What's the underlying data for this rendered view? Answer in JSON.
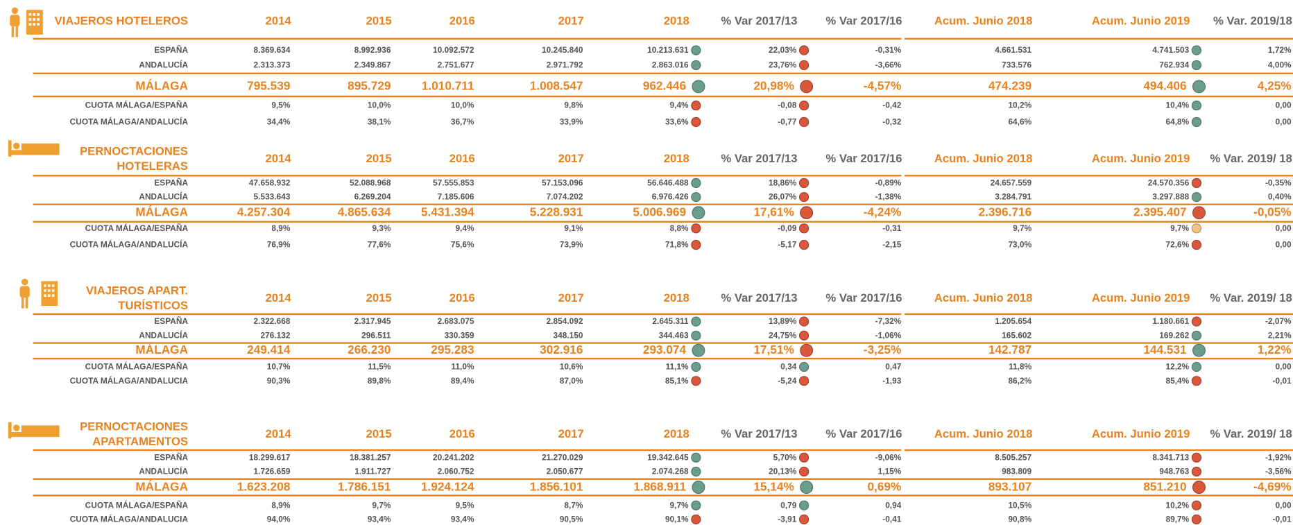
{
  "sections": [
    {
      "title_lines": [
        "VIAJEROS  HOTELEROS"
      ],
      "headers": [
        "2014",
        "2015",
        "2016",
        "2017",
        "2018",
        "% Var 2017/13",
        "% Var 2017/16",
        "Acum. Junio 2018",
        "Acum. Junio 2019",
        "% Var. 2019/18"
      ],
      "rows": [
        {
          "label": "ESPAÑA",
          "values": [
            "8.369.634",
            "8.992.936",
            "10.092.572",
            "10.245.840",
            "10.213.631",
            "22,03%",
            "-0,31%",
            "4.661.531",
            "4.741.503",
            "1,72%"
          ],
          "dots": [
            "#6a9e8b",
            "#d9573b",
            "#6a9e8b"
          ]
        },
        {
          "label": "ANDALUCÍA",
          "values": [
            "2.313.373",
            "2.349.867",
            "2.751.677",
            "2.971.792",
            "2.863.016",
            "23,76%",
            "-3,66%",
            "733.576",
            "762.934",
            "4,00%"
          ],
          "dots": [
            "#6a9e8b",
            "#d9573b",
            "#6a9e8b"
          ]
        },
        {
          "label": "MÁLAGA",
          "values": [
            "795.539",
            "895.729",
            "1.010.711",
            "1.008.547",
            "962.446",
            "20,98%",
            "-4,57%",
            "474.239",
            "494.406",
            "4,25%"
          ],
          "dots": [
            "#6a9e8b",
            "#d9573b",
            "#6a9e8b"
          ]
        },
        {
          "label": "CUOTA MÁLAGA/ESPAÑA",
          "values": [
            "9,5%",
            "10,0%",
            "10,0%",
            "9,8%",
            "9,4%",
            "-0,08",
            "-0,42",
            "10,2%",
            "10,4%",
            "0,00"
          ],
          "dots": [
            "#d9573b",
            "#d9573b",
            "#6a9e8b"
          ]
        },
        {
          "label": "CUOTA MÁLAGA/ANDALUCÍA",
          "values": [
            "34,4%",
            "38,1%",
            "36,7%",
            "33,9%",
            "33,6%",
            "-0,77",
            "-0,32",
            "64,6%",
            "64,8%",
            "0,00"
          ],
          "dots": [
            "#d9573b",
            "#d9573b",
            "#6a9e8b"
          ]
        }
      ]
    },
    {
      "title_lines": [
        "PERNOCTACIONES",
        "HOTELERAS"
      ],
      "headers": [
        "2014",
        "2015",
        "2016",
        "2017",
        "2018",
        "% Var 2017/13",
        "% Var 2017/16",
        "Acum. Junio 2018",
        "Acum. Junio 2019",
        "% Var. 2019/ 18"
      ],
      "rows": [
        {
          "label": "ESPAÑA",
          "values": [
            "47.658.932",
            "52.088.968",
            "57.555.853",
            "57.153.096",
            "56.646.488",
            "18,86%",
            "-0,89%",
            "24.657.559",
            "24.570.356",
            "-0,35%"
          ],
          "dots": [
            "#6a9e8b",
            "#d9573b",
            "#d9573b"
          ]
        },
        {
          "label": "ANDALUCÍA",
          "values": [
            "5.533.643",
            "6.269.204",
            "7.185.606",
            "7.074.202",
            "6.976.426",
            "26,07%",
            "-1,38%",
            "3.284.791",
            "3.297.888",
            "0,40%"
          ],
          "dots": [
            "#6a9e8b",
            "#d9573b",
            "#6a9e8b"
          ]
        },
        {
          "label": "MÁLAGA",
          "values": [
            "4.257.304",
            "4.865.634",
            "5.431.394",
            "5.228.931",
            "5.006.969",
            "17,61%",
            "-4,24%",
            "2.396.716",
            "2.395.407",
            "-0,05%"
          ],
          "dots": [
            "#6a9e8b",
            "#d9573b",
            "#d9573b"
          ]
        },
        {
          "label": "CUOTA MÁLAGA/ESPAÑA",
          "values": [
            "8,9%",
            "9,3%",
            "9,4%",
            "9,1%",
            "8,8%",
            "-0,09",
            "-0,31",
            "9,7%",
            "9,7%",
            "0,00"
          ],
          "dots": [
            "#d9573b",
            "#d9573b",
            "#f2c47e"
          ]
        },
        {
          "label": "CUOTA MÁLAGA/ANDALUCÍA",
          "values": [
            "76,9%",
            "77,6%",
            "75,6%",
            "73,9%",
            "71,8%",
            "-5,17",
            "-2,15",
            "73,0%",
            "72,6%",
            "0,00"
          ],
          "dots": [
            "#d9573b",
            "#d9573b",
            "#d9573b"
          ]
        }
      ]
    },
    {
      "title_lines": [
        "VIAJEROS APART.",
        "TURÍSTICOS"
      ],
      "headers": [
        "2014",
        "2015",
        "2016",
        "2017",
        "2018",
        "% Var 2017/13",
        "% Var 2017/16",
        "Acum. Junio 2018",
        "Acum. Junio 2019",
        "% Var. 2019/ 18"
      ],
      "rows": [
        {
          "label": "ESPAÑA",
          "values": [
            "2.322.668",
            "2.317.945",
            "2.683.075",
            "2.854.092",
            "2.645.311",
            "13,89%",
            "-7,32%",
            "1.205.654",
            "1.180.661",
            "-2,07%"
          ],
          "dots": [
            "#6a9e8b",
            "#d9573b",
            "#d9573b"
          ]
        },
        {
          "label": "ANDALUCÍA",
          "values": [
            "276.132",
            "296.511",
            "330.359",
            "348.150",
            "344.463",
            "24,75%",
            "-1,06%",
            "165.602",
            "169.262",
            "2,21%"
          ],
          "dots": [
            "#6a9e8b",
            "#d9573b",
            "#6a9e8b"
          ]
        },
        {
          "label": "MÁLAGA",
          "values": [
            "249.414",
            "266.230",
            "295.283",
            "302.916",
            "293.074",
            "17,51%",
            "-3,25%",
            "142.787",
            "144.531",
            "1,22%"
          ],
          "dots": [
            "#6a9e8b",
            "#d9573b",
            "#6a9e8b"
          ]
        },
        {
          "label": "CUOTA MÁLAGA/ESPAÑA",
          "values": [
            "10,7%",
            "11,5%",
            "11,0%",
            "10,6%",
            "11,1%",
            "0,34",
            "0,47",
            "11,8%",
            "12,2%",
            "0,00"
          ],
          "dots": [
            "#6a9e8b",
            "#6a9e8b",
            "#6a9e8b"
          ]
        },
        {
          "label": "CUOTA MÁLAGA/ANDALUCIA",
          "values": [
            "90,3%",
            "89,8%",
            "89,4%",
            "87,0%",
            "85,1%",
            "-5,24",
            "-1,93",
            "86,2%",
            "85,4%",
            "-0,01"
          ],
          "dots": [
            "#d9573b",
            "#d9573b",
            "#d9573b"
          ]
        }
      ]
    },
    {
      "title_lines": [
        "PERNOCTACIONES",
        "APARTAMENTOS"
      ],
      "headers": [
        "2014",
        "2015",
        "2016",
        "2017",
        "2018",
        "% Var 2017/13",
        "% Var 2017/16",
        "Acum. Junio 2018",
        "Acum. Junio 2019",
        "% Var. 2019/ 18"
      ],
      "rows": [
        {
          "label": "ESPAÑA",
          "values": [
            "18.299.617",
            "18.381.257",
            "20.241.202",
            "21.270.029",
            "19.342.645",
            "5,70%",
            "-9,06%",
            "8.505.257",
            "8.341.713",
            "-1,92%"
          ],
          "dots": [
            "#6a9e8b",
            "#d9573b",
            "#d9573b"
          ]
        },
        {
          "label": "ANDALUCÍA",
          "values": [
            "1.726.659",
            "1.911.727",
            "2.060.752",
            "2.050.677",
            "2.074.268",
            "20,13%",
            "1,15%",
            "983.809",
            "948.763",
            "-3,56%"
          ],
          "dots": [
            "#6a9e8b",
            "#d9573b",
            "#d9573b"
          ]
        },
        {
          "label": "MÁLAGA",
          "values": [
            "1.623.208",
            "1.786.151",
            "1.924.124",
            "1.856.101",
            "1.868.911",
            "15,14%",
            "0,69%",
            "893.107",
            "851.210",
            "-4,69%"
          ],
          "dots": [
            "#6a9e8b",
            "#6a9e8b",
            "#d9573b"
          ]
        },
        {
          "label": "CUOTA MÁLAGA/ESPAÑA",
          "values": [
            "8,9%",
            "9,7%",
            "9,5%",
            "8,7%",
            "9,7%",
            "0,79",
            "0,94",
            "10,5%",
            "10,2%",
            "0,00"
          ],
          "dots": [
            "#6a9e8b",
            "#6a9e8b",
            "#d9573b"
          ]
        },
        {
          "label": "CUOTA MÁLAGA/ANDALUCIA",
          "values": [
            "94,0%",
            "93,4%",
            "93,4%",
            "90,5%",
            "90,1%",
            "-3,91",
            "-0,41",
            "90,8%",
            "89,7%",
            "-0,01"
          ],
          "dots": [
            "#d9573b",
            "#d9573b",
            "#d9573b"
          ]
        }
      ]
    }
  ]
}
